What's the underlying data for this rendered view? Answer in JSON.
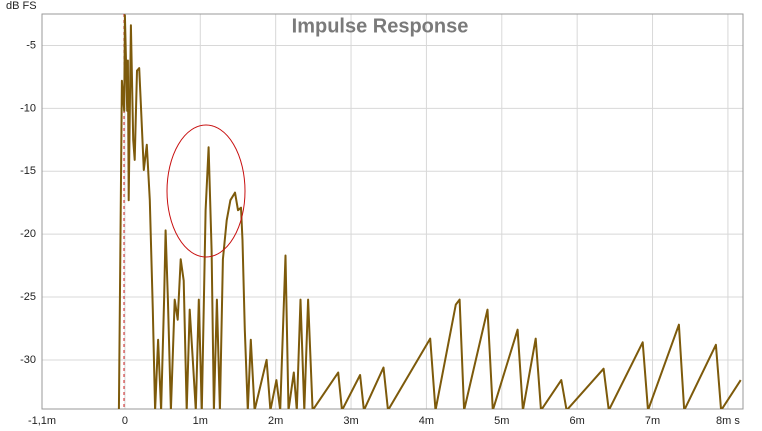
{
  "chart_data": {
    "type": "line",
    "title": "Impulse Response",
    "y_label": "dB FS",
    "x": [
      -0.08,
      -0.04,
      -0.01,
      0,
      0.03,
      0.04,
      0.05,
      0.08,
      0.11,
      0.13,
      0.16,
      0.19,
      0.21,
      0.25,
      0.29,
      0.33,
      0.37,
      0.4,
      0.44,
      0.48,
      0.52,
      0.54,
      0.57,
      0.61,
      0.66,
      0.7,
      0.74,
      0.78,
      0.82,
      0.86,
      0.9,
      0.94,
      0.98,
      1.02,
      1.07,
      1.11,
      1.15,
      1.18,
      1.22,
      1.26,
      1.3,
      1.35,
      1.4,
      1.46,
      1.5,
      1.54,
      1.56,
      1.59,
      1.63,
      1.67,
      1.72,
      1.88,
      1.93,
      2.01,
      2.06,
      2.13,
      2.17,
      2.24,
      2.28,
      2.33,
      2.38,
      2.43,
      2.49,
      2.83,
      2.88,
      3.12,
      3.17,
      3.43,
      3.49,
      4.05,
      4.12,
      4.39,
      4.44,
      4.5,
      4.81,
      4.88,
      5.21,
      5.28,
      5.45,
      5.52,
      5.79,
      5.86,
      6.35,
      6.42,
      6.87,
      6.94,
      7.35,
      7.42,
      7.84,
      7.91,
      8.17
    ],
    "values": [
      -34,
      -7.8,
      -10.2,
      -2.6,
      -10.2,
      -6.2,
      -17.3,
      -3.4,
      -12.5,
      -14.1,
      -7,
      -6.8,
      -9.4,
      -14.9,
      -12.9,
      -17.3,
      -26,
      -34,
      -28.4,
      -34,
      -25.2,
      -19.7,
      -25.2,
      -34,
      -25.2,
      -26.8,
      -22,
      -23.7,
      -34,
      -26,
      -30,
      -34,
      -25.2,
      -34,
      -18.1,
      -13.1,
      -21.3,
      -34,
      -25.2,
      -34,
      -22,
      -18.9,
      -17.3,
      -16.7,
      -18.1,
      -17.9,
      -20.5,
      -27.6,
      -34,
      -28.4,
      -34,
      -30,
      -34,
      -31.6,
      -34,
      -21.7,
      -34,
      -31,
      -34,
      -25.2,
      -34,
      -25.2,
      -34,
      -31,
      -34,
      -31.2,
      -34,
      -30.6,
      -34,
      -28.3,
      -34,
      -25.6,
      -25.2,
      -34,
      -26,
      -34,
      -27.6,
      -34,
      -28.3,
      -34,
      -31.6,
      -34,
      -30.7,
      -34,
      -28.6,
      -34,
      -27.2,
      -34,
      -28.8,
      -34,
      -31.6
    ],
    "color": "#7d5a0b",
    "xlim": [
      -1.1,
      8.2
    ],
    "ylim": [
      -33.9,
      -2.5
    ],
    "xticks": [
      {
        "value": -1.1,
        "label": "-1,1m"
      },
      0,
      {
        "value": 1,
        "label": "1m"
      },
      {
        "value": 2,
        "label": "2m"
      },
      {
        "value": 3,
        "label": "3m"
      },
      {
        "value": 4,
        "label": "4m"
      },
      {
        "value": 5,
        "label": "5m"
      },
      {
        "value": 6,
        "label": "6m"
      },
      {
        "value": 7,
        "label": "7m"
      },
      {
        "value": 8,
        "label": "8m s"
      }
    ],
    "yticks": [
      -5,
      -10,
      -15,
      -20,
      -25,
      -30
    ],
    "grid": true
  }
}
